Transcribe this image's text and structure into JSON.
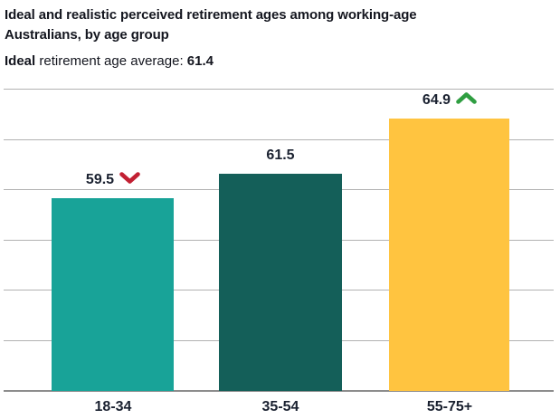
{
  "header": {
    "title": "Ideal and realistic perceived retirement ages among working-age Australians, by age group",
    "title_lines": [
      "Ideal and realistic perceived retirement ages among working-age",
      "Australians, by age group"
    ],
    "subtitle": {
      "bold_prefix": "Ideal",
      "middle_text": " retirement age average: ",
      "bold_value": "61.4"
    }
  },
  "chart_data": {
    "type": "bar",
    "title": "Ideal and realistic perceived retirement ages among working-age Australians, by age group",
    "subtitle": "Ideal retirement age average: 61.4",
    "ideal_average": 61.4,
    "categories": [
      "18-34",
      "35-54",
      "55-75+"
    ],
    "values": [
      59.5,
      61.5,
      64.9
    ],
    "bars": [
      {
        "category": "18-34",
        "value": 59.5,
        "label": "59.5",
        "color": "#18A398",
        "indicator": "down",
        "indicator_color": "#C22033"
      },
      {
        "category": "35-54",
        "value": 61.5,
        "label": "61.5",
        "color": "#145F59",
        "indicator": "none",
        "indicator_color": ""
      },
      {
        "category": "55-75+",
        "value": 64.9,
        "label": "64.9",
        "color": "#FFC440",
        "indicator": "up",
        "indicator_color": "#2F9E41"
      }
    ],
    "xlabel": "",
    "ylabel": "",
    "y_axis_tick_labels_visible": false,
    "gridline_count": 7,
    "grid": true,
    "legend": false
  },
  "colors": {
    "background": "#FFFFFF",
    "text": "#14161F",
    "label_text": "#1A2130",
    "gridline": "#B2B2B2",
    "baseline": "#8D8D8D"
  }
}
